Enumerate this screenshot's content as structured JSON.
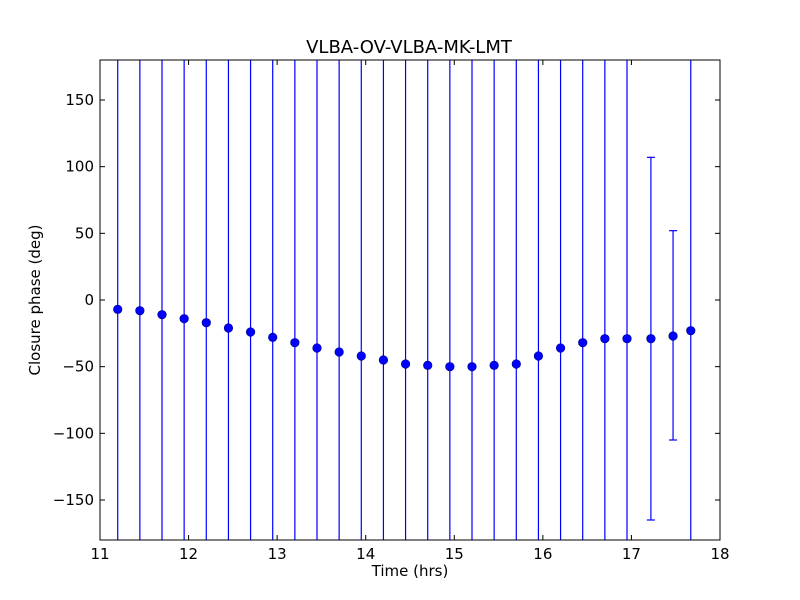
{
  "chart_data": {
    "type": "scatter",
    "title": "VLBA-OV-VLBA-MK-LMT",
    "xlabel": "Time (hrs)",
    "ylabel": "Closure phase (deg)",
    "xlim": [
      11,
      18
    ],
    "ylim": [
      -180,
      180
    ],
    "grid": false,
    "x_ticks": [
      11,
      12,
      13,
      14,
      15,
      16,
      17,
      18
    ],
    "y_ticks": [
      -150,
      -100,
      -50,
      0,
      50,
      100,
      150
    ],
    "x_tick_labels": [
      "11",
      "12",
      "13",
      "14",
      "15",
      "16",
      "17",
      "18"
    ],
    "y_tick_labels": [
      "−150",
      "−100",
      "−50",
      "0",
      "50",
      "100",
      "150"
    ],
    "color": "#0000ff",
    "series": [
      {
        "x": [
          11.2,
          11.45,
          11.7,
          11.95,
          12.2,
          12.45,
          12.7,
          12.95,
          13.2,
          13.45,
          13.7,
          13.95,
          14.2,
          14.45,
          14.7,
          14.95,
          15.2,
          15.45,
          15.7,
          15.95,
          16.2,
          16.45,
          16.7,
          16.95,
          17.22,
          17.47,
          17.67
        ],
        "y": [
          -7,
          -8,
          -11,
          -14,
          -17,
          -21,
          -24,
          -28,
          -32,
          -36,
          -39,
          -42,
          -45,
          -48,
          -49,
          -50,
          -50,
          -49,
          -48,
          -42,
          -36,
          -32,
          -29,
          -29,
          -29,
          -27,
          -23
        ],
        "yerr_low": [
          -180,
          -180,
          -180,
          -180,
          -180,
          -180,
          -180,
          -180,
          -180,
          -180,
          -180,
          -180,
          -180,
          -180,
          -180,
          -180,
          -180,
          -180,
          -180,
          -180,
          -180,
          -180,
          -180,
          -180,
          -165,
          -105,
          -180
        ],
        "yerr_high": [
          180,
          180,
          180,
          180,
          180,
          180,
          180,
          180,
          180,
          180,
          180,
          180,
          180,
          180,
          180,
          180,
          180,
          180,
          180,
          180,
          180,
          180,
          180,
          180,
          107,
          52,
          180
        ]
      }
    ]
  }
}
